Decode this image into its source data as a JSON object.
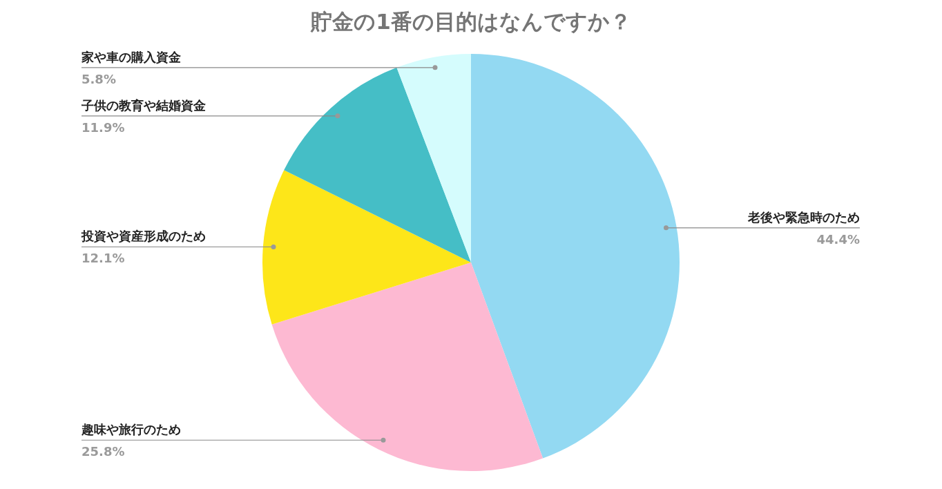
{
  "chart_data": {
    "type": "pie",
    "title": "貯金の1番の目的はなんですか？",
    "categories": [
      "老後や緊急時のため",
      "趣味や旅行のため",
      "投資や資産形成のため",
      "子供の教育や結婚資金",
      "家や車の購入資金"
    ],
    "values": [
      44.4,
      25.8,
      12.1,
      11.9,
      5.8
    ],
    "value_labels": [
      "44.4%",
      "25.8%",
      "12.1%",
      "11.9%",
      "5.8%"
    ],
    "colors": [
      "#93d9f2",
      "#fdb9d2",
      "#fde619",
      "#45bec6",
      "#d5fcfd"
    ]
  }
}
